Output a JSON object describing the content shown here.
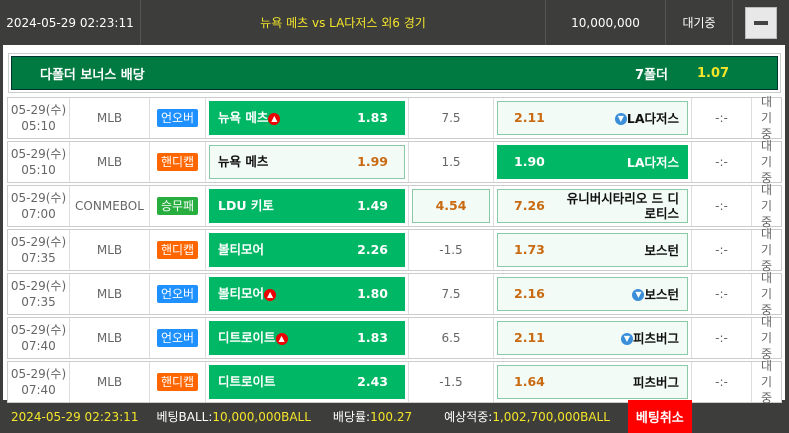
{
  "header": {
    "datetime": "2024-05-29 02:23:11",
    "title": "뉴욕 메츠 vs LA다저스 외6 경기",
    "amount": "10,000,000",
    "status": "대기중",
    "collapse_icon": "minus-icon"
  },
  "bonus": {
    "label": "다폴더 보너스 배당",
    "folds": "7폴더",
    "value": "1.07"
  },
  "colors": {
    "over_under": "#1e90ff",
    "handicap": "#ff6600",
    "win_draw_loss": "#27ae3f",
    "selected": "#00b765"
  },
  "rows": [
    {
      "date": "05-29(수)",
      "time": "05:10",
      "league": "MLB",
      "type": "언오버",
      "type_key": "over_under",
      "home": "뉴욕 메츠",
      "home_odds": "1.83",
      "home_arrow": "up",
      "home_selected": true,
      "mid": "7.5",
      "away": "LA다저스",
      "away_odds": "2.11",
      "away_arrow": "down",
      "away_selected": false,
      "score": "-:-",
      "status": "대기중"
    },
    {
      "date": "05-29(수)",
      "time": "05:10",
      "league": "MLB",
      "type": "핸디캡",
      "type_key": "handicap",
      "home": "뉴욕 메츠",
      "home_odds": "1.99",
      "home_selected": false,
      "mid": "1.5",
      "away": "LA다저스",
      "away_odds": "1.90",
      "away_selected": true,
      "score": "-:-",
      "status": "대기중"
    },
    {
      "date": "05-29(수)",
      "time": "07:00",
      "league": "CONMEBOL",
      "type": "승무패",
      "type_key": "win_draw_loss",
      "home": "LDU 키토",
      "home_odds": "1.49",
      "home_selected": true,
      "mid": "4.54",
      "mid_is_odds": true,
      "away": "유니버시타리오 드 디로티스",
      "away_odds": "7.26",
      "away_selected": false,
      "score": "-:-",
      "status": "대기중"
    },
    {
      "date": "05-29(수)",
      "time": "07:35",
      "league": "MLB",
      "type": "핸디캡",
      "type_key": "handicap",
      "home": "볼티모어",
      "home_odds": "2.26",
      "home_selected": true,
      "mid": "-1.5",
      "away": "보스턴",
      "away_odds": "1.73",
      "away_selected": false,
      "score": "-:-",
      "status": "대기중"
    },
    {
      "date": "05-29(수)",
      "time": "07:35",
      "league": "MLB",
      "type": "언오버",
      "type_key": "over_under",
      "home": "볼티모어",
      "home_odds": "1.80",
      "home_arrow": "up",
      "home_selected": true,
      "mid": "7.5",
      "away": "보스턴",
      "away_odds": "2.16",
      "away_arrow": "down",
      "away_selected": false,
      "score": "-:-",
      "status": "대기중"
    },
    {
      "date": "05-29(수)",
      "time": "07:40",
      "league": "MLB",
      "type": "언오버",
      "type_key": "over_under",
      "home": "디트로이트",
      "home_odds": "1.83",
      "home_arrow": "up",
      "home_selected": true,
      "mid": "6.5",
      "away": "피츠버그",
      "away_odds": "2.11",
      "away_arrow": "down",
      "away_selected": false,
      "score": "-:-",
      "status": "대기중"
    },
    {
      "date": "05-29(수)",
      "time": "07:40",
      "league": "MLB",
      "type": "핸디캡",
      "type_key": "handicap",
      "home": "디트로이트",
      "home_odds": "2.43",
      "home_selected": true,
      "mid": "-1.5",
      "away": "피츠버그",
      "away_odds": "1.64",
      "away_selected": false,
      "score": "-:-",
      "status": "대기중"
    }
  ],
  "footer": {
    "datetime": "2024-05-29 02:23:11",
    "bet_label": "베팅BALL:",
    "bet_value": "10,000,000",
    "bet_unit": "BALL",
    "odds_label": "배당률:",
    "odds_value": "100.27",
    "expected_label": "예상적중:",
    "expected_value": "1,002,700,000",
    "expected_unit": "BALL",
    "cancel": "베팅취소"
  }
}
